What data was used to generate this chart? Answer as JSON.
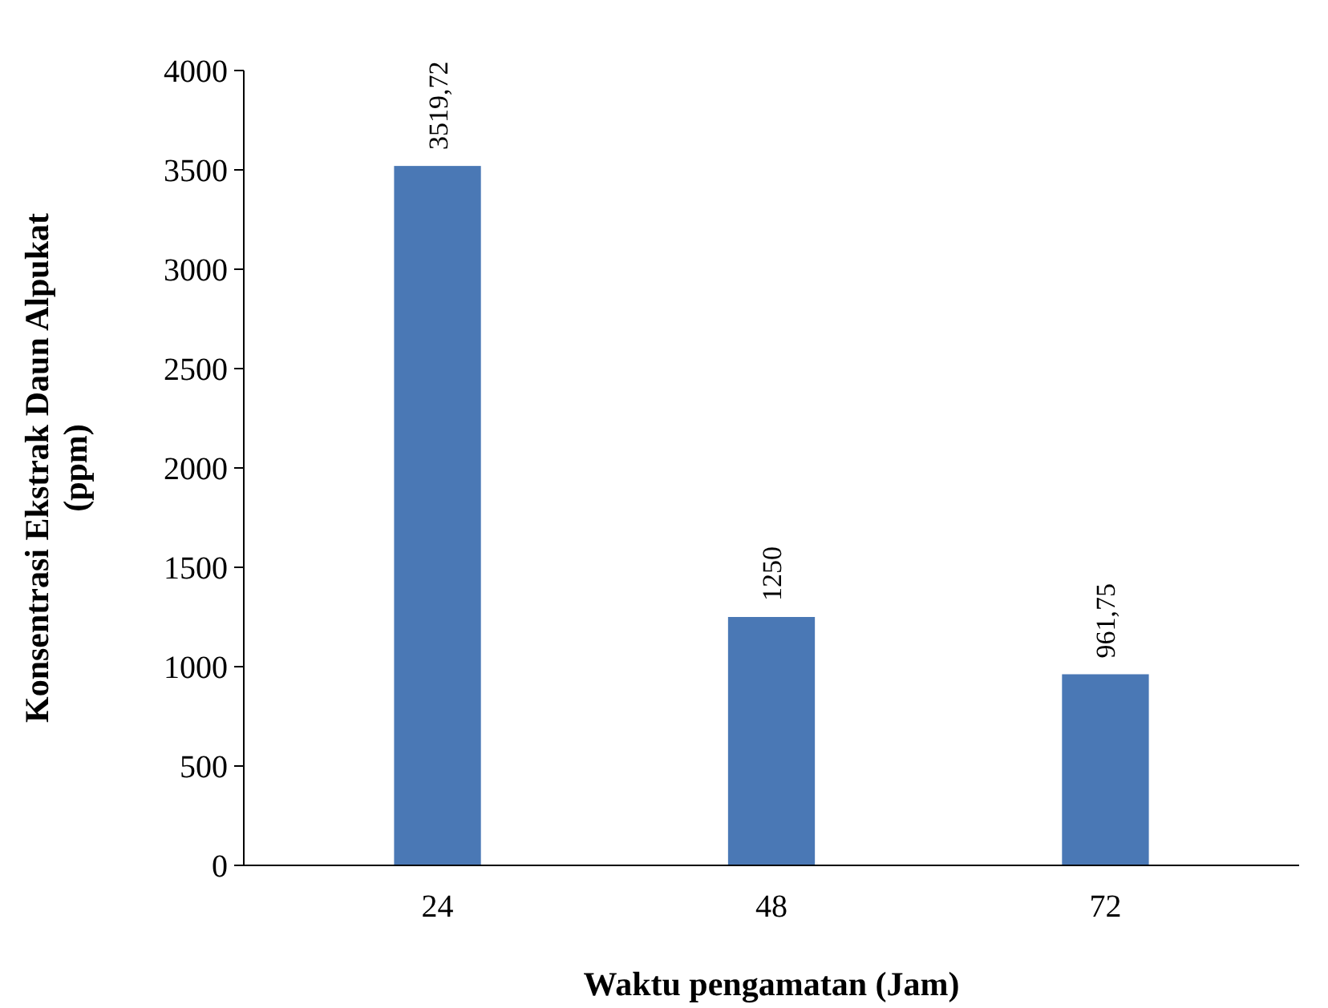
{
  "chart_data": {
    "type": "bar",
    "xlabel": "Waktu pengamatan (Jam)",
    "ylabel": "Konsentrasi Ekstrak Daun Alpukat (ppm)",
    "categories": [
      "24",
      "48",
      "72"
    ],
    "values": [
      3519.72,
      1250,
      961.75
    ],
    "value_labels": [
      "3519,72",
      "1250",
      "961,75"
    ],
    "color": "#4a78b5",
    "ylim": [
      0,
      4000
    ],
    "yticks": [
      0,
      500,
      1000,
      1500,
      2000,
      2500,
      3000,
      3500,
      4000
    ],
    "grid": false
  }
}
